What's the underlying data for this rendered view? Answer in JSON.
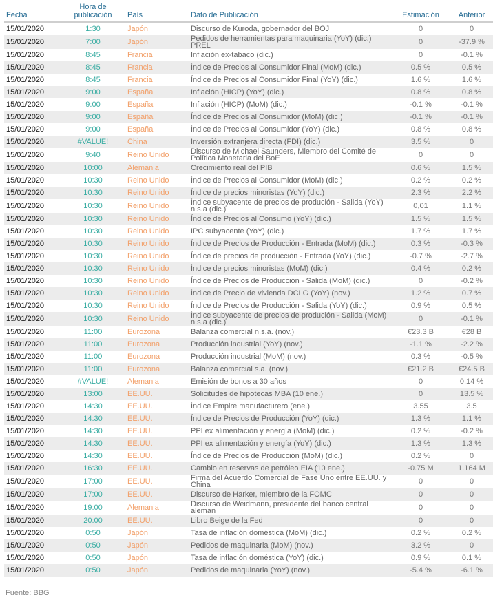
{
  "headers": {
    "date": "Fecha",
    "time": "Hora de publicación",
    "country": "País",
    "desc": "Dato de Publicación",
    "est": "Estimación",
    "prev": "Anterior"
  },
  "rows": [
    [
      "15/01/2020",
      "1:30",
      "Japón",
      "Discurso de Kuroda, gobernador del BOJ",
      "0",
      "0"
    ],
    [
      "15/01/2020",
      "7:00",
      "Japón",
      "Pedidos de herramientas para maquinaria (YoY) (dic.) PREL",
      "0",
      "-37.9 %"
    ],
    [
      "15/01/2020",
      "8:45",
      "Francia",
      "Inflación ex-tabaco (dic.)",
      "0",
      "-0.1 %"
    ],
    [
      "15/01/2020",
      "8:45",
      "Francia",
      "Índice de Precios al Consumidor Final (MoM) (dic.)",
      "0.5 %",
      "0.5 %"
    ],
    [
      "15/01/2020",
      "8:45",
      "Francia",
      "Índice de Precios al Consumidor Final (YoY) (dic.)",
      "1.6 %",
      "1.6 %"
    ],
    [
      "15/01/2020",
      "9:00",
      "España",
      "Inflación (HICP) (YoY) (dic.)",
      "0.8 %",
      "0.8 %"
    ],
    [
      "15/01/2020",
      "9:00",
      "España",
      "Inflación (HICP) (MoM) (dic.)",
      "-0.1 %",
      "-0.1 %"
    ],
    [
      "15/01/2020",
      "9:00",
      "España",
      "Índice de Precios al Consumidor (MoM) (dic.)",
      "-0.1 %",
      "-0.1 %"
    ],
    [
      "15/01/2020",
      "9:00",
      "España",
      "Índice de Precios al Consumidor (YoY) (dic.)",
      "0.8 %",
      "0.8 %"
    ],
    [
      "15/01/2020",
      "#VALUE!",
      "China",
      "Inversión extranjera directa (FDI) (dic.)",
      "3.5 %",
      "0"
    ],
    [
      "15/01/2020",
      "9:40",
      "Reino Unido",
      "Discurso de Michael Saunders, Miembro del Comité de Política Monetaria del BoE",
      "0",
      "0"
    ],
    [
      "15/01/2020",
      "10:00",
      "Alemania",
      "Crecimiento real del PIB",
      "0.6 %",
      "1.5 %"
    ],
    [
      "15/01/2020",
      "10:30",
      "Reino Unido",
      "Índice de Precios al Consumidor (MoM) (dic.)",
      "0.2 %",
      "0.2 %"
    ],
    [
      "15/01/2020",
      "10:30",
      "Reino Unido",
      "Índice de precios minoristas (YoY) (dic.)",
      "2.3 %",
      "2.2 %"
    ],
    [
      "15/01/2020",
      "10:30",
      "Reino Unido",
      "Índice subyacente de precios de produción - Salida (YoY) n.s.a (dic.)",
      "0,01",
      "1.1 %"
    ],
    [
      "15/01/2020",
      "10:30",
      "Reino Unido",
      "Índice de Precios al Consumo (YoY) (dic.)",
      "1.5 %",
      "1.5 %"
    ],
    [
      "15/01/2020",
      "10:30",
      "Reino Unido",
      "IPC subyacente (YoY) (dic.)",
      "1.7 %",
      "1.7 %"
    ],
    [
      "15/01/2020",
      "10:30",
      "Reino Unido",
      "Índice de Precios de Producción - Entrada (MoM) (dic.)",
      "0.3 %",
      "-0.3 %"
    ],
    [
      "15/01/2020",
      "10:30",
      "Reino Unido",
      "Índice de precios de producción - Entrada (YoY) (dic.)",
      "-0.7 %",
      "-2.7 %"
    ],
    [
      "15/01/2020",
      "10:30",
      "Reino Unido",
      "Índice de precios minoristas (MoM) (dic.)",
      "0.4 %",
      "0.2 %"
    ],
    [
      "15/01/2020",
      "10:30",
      "Reino Unido",
      "Índice de Precios de Producción - Salida (MoM) (dic.)",
      "0",
      "-0.2 %"
    ],
    [
      "15/01/2020",
      "10:30",
      "Reino Unido",
      "Índice de Precio de vivienda DCLG (YoY) (nov.)",
      "1.2 %",
      "0.7 %"
    ],
    [
      "15/01/2020",
      "10:30",
      "Reino Unido",
      "Índice de Precios de Producción - Salida (YoY) (dic.)",
      "0.9 %",
      "0.5 %"
    ],
    [
      "15/01/2020",
      "10:30",
      "Reino Unido",
      "Índice subyacente de precios de produción - Salida (MoM) n.s.a (dic.)",
      "0",
      "-0.1 %"
    ],
    [
      "15/01/2020",
      "11:00",
      "Eurozona",
      "Balanza comercial n.s.a. (nov.)",
      "€23.3 B",
      "€28 B"
    ],
    [
      "15/01/2020",
      "11:00",
      "Eurozona",
      "Producción industrial (YoY) (nov.)",
      "-1.1 %",
      "-2.2 %"
    ],
    [
      "15/01/2020",
      "11:00",
      "Eurozona",
      "Producción industrial (MoM) (nov.)",
      "0.3 %",
      "-0.5 %"
    ],
    [
      "15/01/2020",
      "11:00",
      "Eurozona",
      "Balanza comercial s.a. (nov.)",
      "€21.2 B",
      "€24.5 B"
    ],
    [
      "15/01/2020",
      "#VALUE!",
      "Alemania",
      "Emisión de bonos a 30 años",
      "0",
      "0.14 %"
    ],
    [
      "15/01/2020",
      "13:00",
      "EE.UU.",
      "Solicitudes de hipotecas MBA (10 ene.)",
      "0",
      "13.5 %"
    ],
    [
      "15/01/2020",
      "14:30",
      "EE.UU.",
      "Índice Empire manufacturero (ene.)",
      "3.55",
      "3.5"
    ],
    [
      "15/01/2020",
      "14:30",
      "EE.UU.",
      "Índice de Precios de Producción (YoY) (dic.)",
      "1.3 %",
      "1.1 %"
    ],
    [
      "15/01/2020",
      "14:30",
      "EE.UU.",
      "PPI ex alimentación y energía (MoM) (dic.)",
      "0.2 %",
      "-0.2 %"
    ],
    [
      "15/01/2020",
      "14:30",
      "EE.UU.",
      "PPI ex alimentación y energía (YoY) (dic.)",
      "1.3 %",
      "1.3 %"
    ],
    [
      "15/01/2020",
      "14:30",
      "EE.UU.",
      "Índice de Precios de Producción (MoM) (dic.)",
      "0.2 %",
      "0"
    ],
    [
      "15/01/2020",
      "16:30",
      "EE.UU.",
      "Cambio en reservas de petróleo EIA (10 ene.)",
      "-0.75 M",
      "1.164 M"
    ],
    [
      "15/01/2020",
      "17:00",
      "EE.UU.",
      "Firma del Acuerdo Comercial de Fase Uno entre EE.UU. y China",
      "0",
      "0"
    ],
    [
      "15/01/2020",
      "17:00",
      "EE.UU.",
      "Discurso de Harker, miembro de la FOMC",
      "0",
      "0"
    ],
    [
      "15/01/2020",
      "19:00",
      "Alemania",
      "Discurso de Weidmann, presidente del banco central alemán",
      "0",
      "0"
    ],
    [
      "15/01/2020",
      "20:00",
      "EE.UU.",
      "Libro Beige de la Fed",
      "0",
      "0"
    ],
    [
      "15/01/2020",
      "0:50",
      "Japón",
      "Tasa de inflación doméstica (MoM) (dic.)",
      "0.2 %",
      "0.2 %"
    ],
    [
      "15/01/2020",
      "0:50",
      "Japón",
      "Pedidos de maquinaria (MoM) (nov.)",
      "3.2 %",
      "0"
    ],
    [
      "15/01/2020",
      "0:50",
      "Japón",
      "Tasa de inflación doméstica (YoY) (dic.)",
      "0.9 %",
      "0.1 %"
    ],
    [
      "15/01/2020",
      "0:50",
      "Japón",
      "Pedidos de maquinaria (YoY) (nov.)",
      "-5.4 %",
      "-6.1 %"
    ]
  ],
  "footer": "Fuente: BBG"
}
